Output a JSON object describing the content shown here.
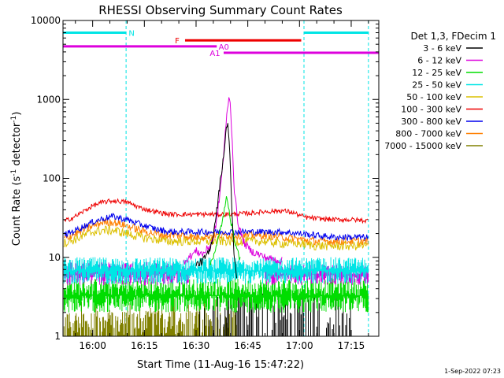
{
  "chart_data": {
    "type": "line",
    "title": "RHESSI Observing Summary Count Rates",
    "xlabel": "Start Time (11-Aug-16 15:47:22)",
    "ylabel_main": "Count Rate (s",
    "ylabel_sup1": "-1",
    "ylabel_mid": " detector",
    "ylabel_sup2": "-1",
    "ylabel_end": ")",
    "yscale": "log",
    "ylim": [
      1,
      10000
    ],
    "yticks": [
      "1",
      "10",
      "100",
      "1000",
      "10000"
    ],
    "xlim_minutes": [
      -8.6,
      83.0
    ],
    "xticks": [
      {
        "label": "16:00",
        "min": 0
      },
      {
        "label": "16:15",
        "min": 15
      },
      {
        "label": "16:30",
        "min": 30
      },
      {
        "label": "16:45",
        "min": 45
      },
      {
        "label": "17:00",
        "min": 60
      },
      {
        "label": "17:15",
        "min": 75
      }
    ],
    "legend_title": "Det 1,3, FDecim 1",
    "legend_position": "right",
    "series": [
      {
        "name": "3 - 6 keV",
        "color": "#000000"
      },
      {
        "name": "6 - 12 keV",
        "color": "#dd00dd"
      },
      {
        "name": "12 - 25 keV",
        "color": "#00dd00"
      },
      {
        "name": "25 - 50 keV",
        "color": "#00e5e5"
      },
      {
        "name": "50 - 100 keV",
        "color": "#dcc000"
      },
      {
        "name": "100 - 300 keV",
        "color": "#ee0000"
      },
      {
        "name": "300 - 800 keV",
        "color": "#0000ee"
      },
      {
        "name": "800 - 7000 keV",
        "color": "#ff8000"
      },
      {
        "name": "7000 - 15000 keV",
        "color": "#808000"
      }
    ],
    "flags": [
      {
        "label": "N",
        "color": "#00e5e5",
        "y": 7000,
        "spans": [
          [
            -8.6,
            9.7
          ],
          [
            61.3,
            80.0
          ]
        ]
      },
      {
        "label": "F",
        "color": "#ee0000",
        "y": 5600,
        "spans": [
          [
            26.8,
            60.5
          ]
        ]
      },
      {
        "label": "A0",
        "color": "#dd00dd",
        "y": 4700,
        "spans": [
          [
            -8.6,
            36.0
          ]
        ]
      },
      {
        "label": "A1",
        "color": "#dd00dd",
        "y": 3900,
        "spans": [
          [
            38.0,
            83.0
          ]
        ]
      }
    ],
    "night_lines_min": [
      -8.6,
      9.7,
      61.3,
      80.0
    ],
    "curves": {
      "red_100_300": [
        [
          -8.6,
          28
        ],
        [
          -5,
          33
        ],
        [
          0,
          45
        ],
        [
          3,
          50
        ],
        [
          6,
          52
        ],
        [
          10,
          50
        ],
        [
          14,
          42
        ],
        [
          18,
          38
        ],
        [
          22,
          35
        ],
        [
          26,
          35
        ],
        [
          30,
          35
        ],
        [
          35,
          35
        ],
        [
          40,
          35
        ],
        [
          45,
          36
        ],
        [
          50,
          38
        ],
        [
          55,
          39
        ],
        [
          58,
          37
        ],
        [
          60,
          34
        ],
        [
          62,
          32
        ],
        [
          65,
          31
        ],
        [
          70,
          30
        ],
        [
          75,
          30
        ],
        [
          80,
          29
        ],
        [
          83,
          29
        ]
      ],
      "blue_300_800": [
        [
          -8.6,
          19
        ],
        [
          -5,
          22
        ],
        [
          0,
          28
        ],
        [
          3,
          31
        ],
        [
          6,
          33
        ],
        [
          10,
          30
        ],
        [
          14,
          26
        ],
        [
          18,
          23
        ],
        [
          22,
          21
        ],
        [
          26,
          21
        ],
        [
          30,
          21
        ],
        [
          35,
          21
        ],
        [
          40,
          21
        ],
        [
          45,
          21
        ],
        [
          50,
          21
        ],
        [
          55,
          21
        ],
        [
          60,
          20
        ],
        [
          65,
          19
        ],
        [
          70,
          18
        ],
        [
          75,
          18
        ],
        [
          80,
          18
        ],
        [
          83,
          18
        ]
      ],
      "orange_800_7000": [
        [
          -8.6,
          17
        ],
        [
          -5,
          20
        ],
        [
          0,
          25
        ],
        [
          3,
          28
        ],
        [
          6,
          28
        ],
        [
          10,
          25
        ],
        [
          14,
          22
        ],
        [
          18,
          20
        ],
        [
          22,
          19
        ],
        [
          26,
          19
        ],
        [
          30,
          18
        ],
        [
          35,
          19
        ],
        [
          40,
          19
        ],
        [
          45,
          19
        ],
        [
          50,
          19
        ],
        [
          55,
          18
        ],
        [
          60,
          17
        ],
        [
          65,
          16
        ],
        [
          70,
          16
        ],
        [
          75,
          16
        ],
        [
          80,
          16
        ],
        [
          83,
          16
        ]
      ],
      "yellow_50_100": [
        [
          -8.6,
          15
        ],
        [
          -5,
          17
        ],
        [
          0,
          21
        ],
        [
          3,
          22
        ],
        [
          6,
          22
        ],
        [
          10,
          20
        ],
        [
          14,
          18
        ],
        [
          18,
          17
        ],
        [
          22,
          16
        ],
        [
          26,
          16
        ],
        [
          30,
          16
        ],
        [
          35,
          16
        ],
        [
          40,
          16
        ],
        [
          45,
          16
        ],
        [
          50,
          16
        ],
        [
          55,
          15
        ],
        [
          60,
          15
        ],
        [
          65,
          14
        ],
        [
          70,
          14
        ],
        [
          75,
          14
        ],
        [
          80,
          14
        ],
        [
          83,
          14
        ]
      ],
      "magenta_6_12": [
        [
          26.5,
          9
        ],
        [
          28,
          10
        ],
        [
          30,
          12
        ],
        [
          32,
          11
        ],
        [
          34,
          14
        ],
        [
          35,
          18
        ],
        [
          36,
          30
        ],
        [
          37,
          70
        ],
        [
          38,
          200
        ],
        [
          38.8,
          550
        ],
        [
          39.5,
          1100
        ],
        [
          40,
          800
        ],
        [
          40.5,
          300
        ],
        [
          41,
          80
        ],
        [
          42,
          30
        ],
        [
          43,
          20
        ],
        [
          44,
          15
        ],
        [
          46,
          12
        ],
        [
          48,
          11
        ],
        [
          50,
          10
        ],
        [
          52,
          9.5
        ],
        [
          55,
          9
        ]
      ],
      "black_3_6": [
        [
          30,
          8
        ],
        [
          32,
          9
        ],
        [
          34,
          12
        ],
        [
          35,
          20
        ],
        [
          36,
          40
        ],
        [
          37,
          90
        ],
        [
          38,
          200
        ],
        [
          39,
          500
        ],
        [
          39.5,
          400
        ],
        [
          40,
          120
        ],
        [
          40.5,
          30
        ],
        [
          41,
          10
        ],
        [
          42,
          5
        ]
      ],
      "green_12_25": [
        [
          34,
          8
        ],
        [
          36,
          14
        ],
        [
          37,
          22
        ],
        [
          38,
          35
        ],
        [
          38.8,
          55
        ],
        [
          39.5,
          45
        ],
        [
          40,
          30
        ],
        [
          41,
          18
        ],
        [
          42,
          12
        ],
        [
          43,
          9
        ]
      ]
    }
  }
}
